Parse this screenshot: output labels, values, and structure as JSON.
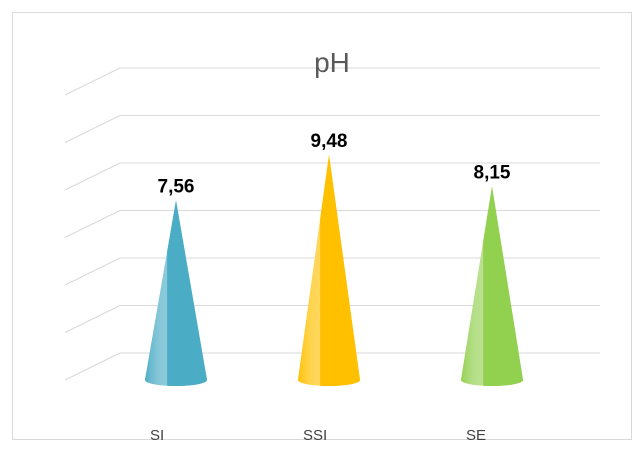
{
  "chart_data": {
    "type": "bar",
    "bar_shape": "cone",
    "title": "pH",
    "categories": [
      "SI",
      "SSI",
      "SE"
    ],
    "values": [
      7.56,
      9.48,
      8.15
    ],
    "value_labels": [
      "7,56",
      "9,48",
      "8,15"
    ],
    "ylim": [
      0,
      12
    ],
    "grid": true,
    "legend": "none",
    "colors": [
      "#4BACC6",
      "#FFC000",
      "#92D050"
    ]
  }
}
